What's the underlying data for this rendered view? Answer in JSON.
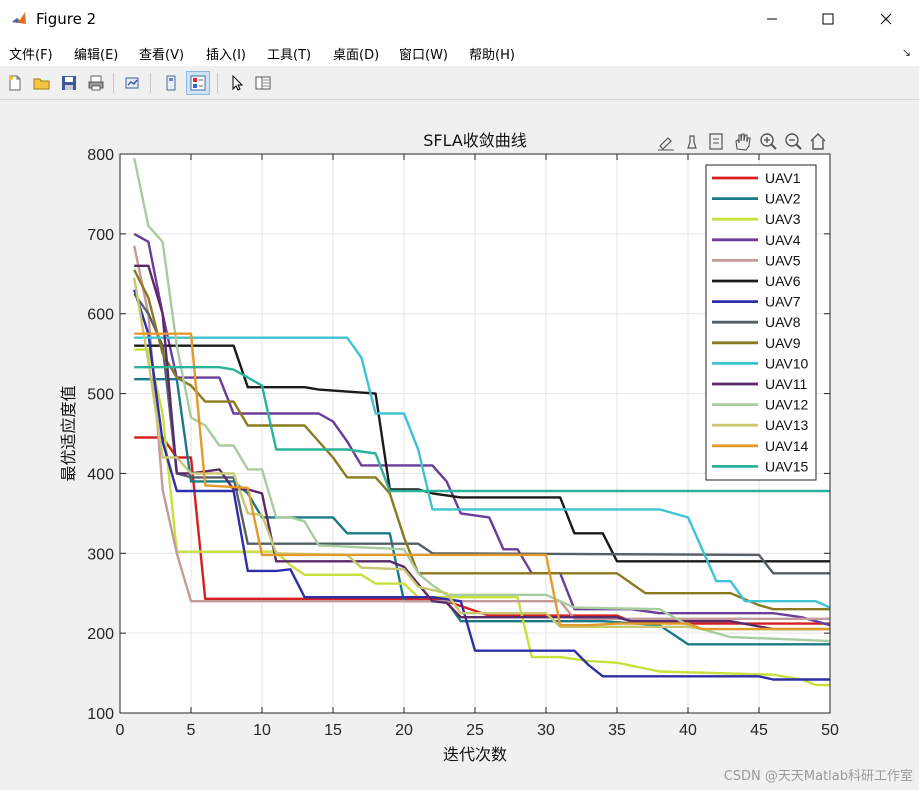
{
  "window": {
    "title": "Figure 2",
    "minimize_icon": "minimize-icon",
    "maximize_icon": "maximize-icon",
    "close_icon": "close-icon"
  },
  "menu": [
    "文件(F)",
    "编辑(E)",
    "查看(V)",
    "插入(I)",
    "工具(T)",
    "桌面(D)",
    "窗口(W)",
    "帮助(H)"
  ],
  "toolbar": [
    "new-figure-icon",
    "open-file-icon",
    "save-icon",
    "print-icon",
    "link-plot-icon",
    "hide-plot-tools-icon",
    "show-plot-tools-icon",
    "pointer-icon",
    "property-editor-icon"
  ],
  "axes_toolbar": [
    "brush-icon",
    "data-tips-icon",
    "export-icon",
    "pan-hand-icon",
    "zoom-in-icon",
    "zoom-out-icon",
    "home-icon"
  ],
  "watermark": "CSDN @天天Matlab科研工作室",
  "chart_data": {
    "type": "line",
    "title": "SFLA收敛曲线",
    "xlabel": "迭代次数",
    "ylabel": "最优适应度值",
    "xlim": [
      0,
      50
    ],
    "ylim": [
      100,
      800
    ],
    "xticks": [
      0,
      5,
      10,
      15,
      20,
      25,
      30,
      35,
      40,
      45,
      50
    ],
    "yticks": [
      100,
      200,
      300,
      400,
      500,
      600,
      700,
      800
    ],
    "grid": true,
    "legend_position": "top-right",
    "series": [
      {
        "name": "UAV1",
        "color": "#d62020",
        "points": [
          [
            1,
            445
          ],
          [
            3,
            445
          ],
          [
            4,
            420
          ],
          [
            5,
            420
          ],
          [
            6,
            243
          ],
          [
            22,
            243
          ],
          [
            23,
            240
          ],
          [
            26,
            222
          ],
          [
            35,
            222
          ],
          [
            36,
            215
          ],
          [
            40,
            212
          ],
          [
            50,
            212
          ]
        ]
      },
      {
        "name": "UAV2",
        "color": "#1a7a8a",
        "points": [
          [
            1,
            518
          ],
          [
            4,
            518
          ],
          [
            5,
            390
          ],
          [
            8,
            390
          ],
          [
            9,
            375
          ],
          [
            10,
            345
          ],
          [
            11,
            345
          ],
          [
            12,
            345
          ],
          [
            15,
            345
          ],
          [
            16,
            325
          ],
          [
            19,
            325
          ],
          [
            20,
            240
          ],
          [
            23,
            240
          ],
          [
            24,
            215
          ],
          [
            34,
            215
          ],
          [
            38,
            210
          ],
          [
            40,
            186
          ],
          [
            50,
            186
          ]
        ]
      },
      {
        "name": "UAV3",
        "color": "#c8e03c",
        "points": [
          [
            1,
            555
          ],
          [
            2,
            555
          ],
          [
            3,
            475
          ],
          [
            4,
            302
          ],
          [
            11,
            302
          ],
          [
            12,
            285
          ],
          [
            13,
            273
          ],
          [
            17,
            273
          ],
          [
            18,
            262
          ],
          [
            20,
            262
          ],
          [
            21,
            245
          ],
          [
            28,
            245
          ],
          [
            29,
            170
          ],
          [
            31,
            170
          ],
          [
            33,
            165
          ],
          [
            35,
            163
          ],
          [
            38,
            152
          ],
          [
            46,
            148
          ],
          [
            48,
            142
          ],
          [
            49,
            135
          ],
          [
            50,
            135
          ]
        ]
      },
      {
        "name": "UAV4",
        "color": "#6a3d9a",
        "points": [
          [
            1,
            700
          ],
          [
            2,
            690
          ],
          [
            3,
            600
          ],
          [
            4,
            520
          ],
          [
            7,
            520
          ],
          [
            8,
            475
          ],
          [
            14,
            475
          ],
          [
            15,
            465
          ],
          [
            16,
            440
          ],
          [
            17,
            410
          ],
          [
            22,
            410
          ],
          [
            23,
            390
          ],
          [
            24,
            350
          ],
          [
            26,
            345
          ],
          [
            27,
            305
          ],
          [
            28,
            305
          ],
          [
            29,
            275
          ],
          [
            31,
            275
          ],
          [
            32,
            230
          ],
          [
            36,
            230
          ],
          [
            38,
            225
          ],
          [
            46,
            225
          ],
          [
            48,
            220
          ],
          [
            50,
            210
          ]
        ]
      },
      {
        "name": "UAV5",
        "color": "#c49a9a",
        "points": [
          [
            1,
            685
          ],
          [
            2,
            600
          ],
          [
            3,
            380
          ],
          [
            4,
            300
          ],
          [
            5,
            240
          ],
          [
            20,
            240
          ],
          [
            22,
            240
          ],
          [
            31,
            240
          ],
          [
            32,
            218
          ],
          [
            50,
            218
          ]
        ]
      },
      {
        "name": "UAV6",
        "color": "#1a1a1a",
        "points": [
          [
            1,
            560
          ],
          [
            8,
            560
          ],
          [
            9,
            508
          ],
          [
            13,
            508
          ],
          [
            14,
            505
          ],
          [
            18,
            500
          ],
          [
            19,
            380
          ],
          [
            21,
            380
          ],
          [
            22,
            375
          ],
          [
            24,
            370
          ],
          [
            31,
            370
          ],
          [
            32,
            325
          ],
          [
            34,
            325
          ],
          [
            35,
            290
          ],
          [
            46,
            290
          ],
          [
            50,
            290
          ]
        ]
      },
      {
        "name": "UAV7",
        "color": "#2e2ea8",
        "points": [
          [
            1,
            630
          ],
          [
            2,
            575
          ],
          [
            3,
            440
          ],
          [
            4,
            378
          ],
          [
            8,
            378
          ],
          [
            9,
            278
          ],
          [
            11,
            278
          ],
          [
            12,
            280
          ],
          [
            13,
            245
          ],
          [
            22,
            245
          ],
          [
            24,
            240
          ],
          [
            25,
            178
          ],
          [
            31,
            178
          ],
          [
            32,
            178
          ],
          [
            33,
            160
          ],
          [
            34,
            146
          ],
          [
            45,
            146
          ],
          [
            46,
            142
          ],
          [
            50,
            142
          ]
        ]
      },
      {
        "name": "UAV8",
        "color": "#555f66",
        "points": [
          [
            1,
            625
          ],
          [
            2,
            600
          ],
          [
            3,
            560
          ],
          [
            4,
            400
          ],
          [
            5,
            395
          ],
          [
            8,
            395
          ],
          [
            9,
            312
          ],
          [
            21,
            312
          ],
          [
            22,
            300
          ],
          [
            45,
            298
          ],
          [
            46,
            275
          ],
          [
            50,
            275
          ]
        ]
      },
      {
        "name": "UAV9",
        "color": "#8a7a1f",
        "points": [
          [
            1,
            655
          ],
          [
            2,
            620
          ],
          [
            3,
            550
          ],
          [
            4,
            520
          ],
          [
            5,
            510
          ],
          [
            6,
            490
          ],
          [
            8,
            490
          ],
          [
            9,
            460
          ],
          [
            13,
            460
          ],
          [
            14,
            440
          ],
          [
            15,
            420
          ],
          [
            16,
            395
          ],
          [
            18,
            395
          ],
          [
            19,
            375
          ],
          [
            20,
            320
          ],
          [
            21,
            275
          ],
          [
            22,
            275
          ],
          [
            35,
            275
          ],
          [
            37,
            250
          ],
          [
            43,
            250
          ],
          [
            45,
            235
          ],
          [
            46,
            230
          ],
          [
            50,
            230
          ]
        ]
      },
      {
        "name": "UAV10",
        "color": "#3ec3d4",
        "points": [
          [
            1,
            570
          ],
          [
            16,
            570
          ],
          [
            17,
            545
          ],
          [
            18,
            475
          ],
          [
            20,
            475
          ],
          [
            21,
            430
          ],
          [
            22,
            355
          ],
          [
            38,
            355
          ],
          [
            40,
            345
          ],
          [
            41,
            305
          ],
          [
            42,
            265
          ],
          [
            43,
            265
          ],
          [
            44,
            240
          ],
          [
            49,
            240
          ],
          [
            50,
            232
          ]
        ]
      },
      {
        "name": "UAV11",
        "color": "#5a2a6a",
        "points": [
          [
            1,
            660
          ],
          [
            2,
            660
          ],
          [
            3,
            600
          ],
          [
            4,
            400
          ],
          [
            5,
            400
          ],
          [
            7,
            405
          ],
          [
            8,
            380
          ],
          [
            9,
            380
          ],
          [
            10,
            375
          ],
          [
            11,
            290
          ],
          [
            19,
            290
          ],
          [
            20,
            283
          ],
          [
            22,
            240
          ],
          [
            23,
            238
          ],
          [
            24,
            220
          ],
          [
            35,
            220
          ],
          [
            36,
            215
          ],
          [
            43,
            215
          ],
          [
            46,
            205
          ],
          [
            50,
            205
          ]
        ]
      },
      {
        "name": "UAV12",
        "color": "#a8cca0",
        "points": [
          [
            1,
            795
          ],
          [
            2,
            710
          ],
          [
            3,
            690
          ],
          [
            4,
            560
          ],
          [
            5,
            470
          ],
          [
            6,
            460
          ],
          [
            7,
            435
          ],
          [
            8,
            435
          ],
          [
            9,
            405
          ],
          [
            10,
            405
          ],
          [
            11,
            345
          ],
          [
            12,
            345
          ],
          [
            13,
            340
          ],
          [
            14,
            310
          ],
          [
            20,
            305
          ],
          [
            21,
            275
          ],
          [
            22,
            260
          ],
          [
            23,
            248
          ],
          [
            30,
            248
          ],
          [
            32,
            232
          ],
          [
            38,
            230
          ],
          [
            40,
            210
          ],
          [
            43,
            195
          ],
          [
            46,
            193
          ],
          [
            50,
            190
          ]
        ]
      },
      {
        "name": "UAV13",
        "color": "#c8c870",
        "points": [
          [
            1,
            645
          ],
          [
            2,
            540
          ],
          [
            3,
            420
          ],
          [
            4,
            420
          ],
          [
            5,
            400
          ],
          [
            8,
            400
          ],
          [
            9,
            350
          ],
          [
            10,
            348
          ],
          [
            11,
            300
          ],
          [
            16,
            298
          ],
          [
            17,
            282
          ],
          [
            20,
            280
          ],
          [
            21,
            258
          ],
          [
            23,
            250
          ],
          [
            24,
            225
          ],
          [
            30,
            225
          ],
          [
            31,
            208
          ],
          [
            40,
            208
          ],
          [
            41,
            205
          ],
          [
            50,
            205
          ]
        ]
      },
      {
        "name": "UAV14",
        "color": "#e29a2b",
        "points": [
          [
            1,
            575
          ],
          [
            5,
            575
          ],
          [
            6,
            385
          ],
          [
            9,
            382
          ],
          [
            10,
            298
          ],
          [
            30,
            298
          ],
          [
            31,
            210
          ],
          [
            33,
            210
          ],
          [
            35,
            212
          ],
          [
            40,
            212
          ],
          [
            41,
            205
          ],
          [
            50,
            205
          ]
        ]
      },
      {
        "name": "UAV15",
        "color": "#2bb39a",
        "points": [
          [
            1,
            533
          ],
          [
            7,
            533
          ],
          [
            8,
            530
          ],
          [
            10,
            510
          ],
          [
            11,
            430
          ],
          [
            16,
            430
          ],
          [
            18,
            425
          ],
          [
            19,
            378
          ],
          [
            21,
            378
          ],
          [
            22,
            378
          ],
          [
            50,
            378
          ]
        ]
      }
    ]
  }
}
